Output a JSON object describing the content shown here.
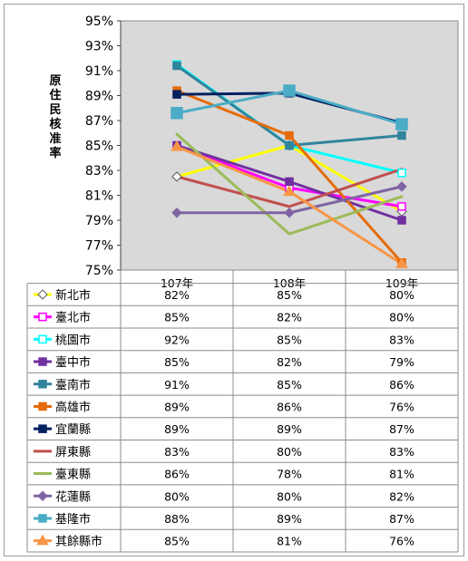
{
  "chart_data": {
    "type": "line",
    "title": "",
    "xlabel": "",
    "ylabel": "原住民核准率",
    "categories": [
      "107年",
      "108年",
      "109年"
    ],
    "ylim": [
      75,
      95
    ],
    "yticks": [
      75,
      77,
      79,
      81,
      83,
      85,
      87,
      89,
      91,
      93,
      95
    ],
    "ytick_labels": [
      "75%",
      "77%",
      "79%",
      "81%",
      "83%",
      "85%",
      "87%",
      "89%",
      "91%",
      "93%",
      "95%"
    ],
    "grid": false,
    "legend": "data-table-below",
    "series": [
      {
        "name": "新北市",
        "values": [
          82.5,
          85.0,
          79.7
        ],
        "labels": [
          "82%",
          "85%",
          "80%"
        ],
        "color": "#ffff00",
        "marker": "diamond-open"
      },
      {
        "name": "臺北市",
        "values": [
          85.0,
          81.6,
          80.1
        ],
        "labels": [
          "85%",
          "82%",
          "80%"
        ],
        "color": "#ff00ff",
        "marker": "square-open"
      },
      {
        "name": "桃園市",
        "values": [
          91.5,
          85.0,
          82.8
        ],
        "labels": [
          "92%",
          "85%",
          "83%"
        ],
        "color": "#00ffff",
        "marker": "square-open"
      },
      {
        "name": "臺中市",
        "values": [
          85.0,
          82.1,
          79.0
        ],
        "labels": [
          "85%",
          "82%",
          "79%"
        ],
        "color": "#7030a0",
        "marker": "square"
      },
      {
        "name": "臺南市",
        "values": [
          91.4,
          85.0,
          85.8
        ],
        "labels": [
          "91%",
          "85%",
          "86%"
        ],
        "color": "#31849b",
        "marker": "square"
      },
      {
        "name": "高雄市",
        "values": [
          89.4,
          85.8,
          75.6
        ],
        "labels": [
          "89%",
          "86%",
          "76%"
        ],
        "color": "#e46c0a",
        "marker": "square"
      },
      {
        "name": "宜蘭縣",
        "values": [
          89.1,
          89.2,
          86.8
        ],
        "labels": [
          "89%",
          "89%",
          "87%"
        ],
        "color": "#002060",
        "marker": "square"
      },
      {
        "name": "屏東縣",
        "values": [
          82.5,
          80.1,
          83.1
        ],
        "labels": [
          "83%",
          "80%",
          "83%"
        ],
        "color": "#c0504d",
        "marker": "none"
      },
      {
        "name": "臺東縣",
        "values": [
          85.9,
          77.9,
          80.9
        ],
        "labels": [
          "86%",
          "78%",
          "81%"
        ],
        "color": "#9bbb59",
        "marker": "none"
      },
      {
        "name": "花蓮縣",
        "values": [
          79.6,
          79.6,
          81.7
        ],
        "labels": [
          "80%",
          "80%",
          "82%"
        ],
        "color": "#8064a2",
        "marker": "diamond"
      },
      {
        "name": "基隆市",
        "values": [
          87.6,
          89.4,
          86.7
        ],
        "labels": [
          "88%",
          "89%",
          "87%"
        ],
        "color": "#4bacc6",
        "marker": "square-big"
      },
      {
        "name": "其餘縣市",
        "values": [
          84.9,
          81.3,
          75.5
        ],
        "labels": [
          "85%",
          "81%",
          "76%"
        ],
        "color": "#f79646",
        "marker": "triangle"
      }
    ]
  }
}
